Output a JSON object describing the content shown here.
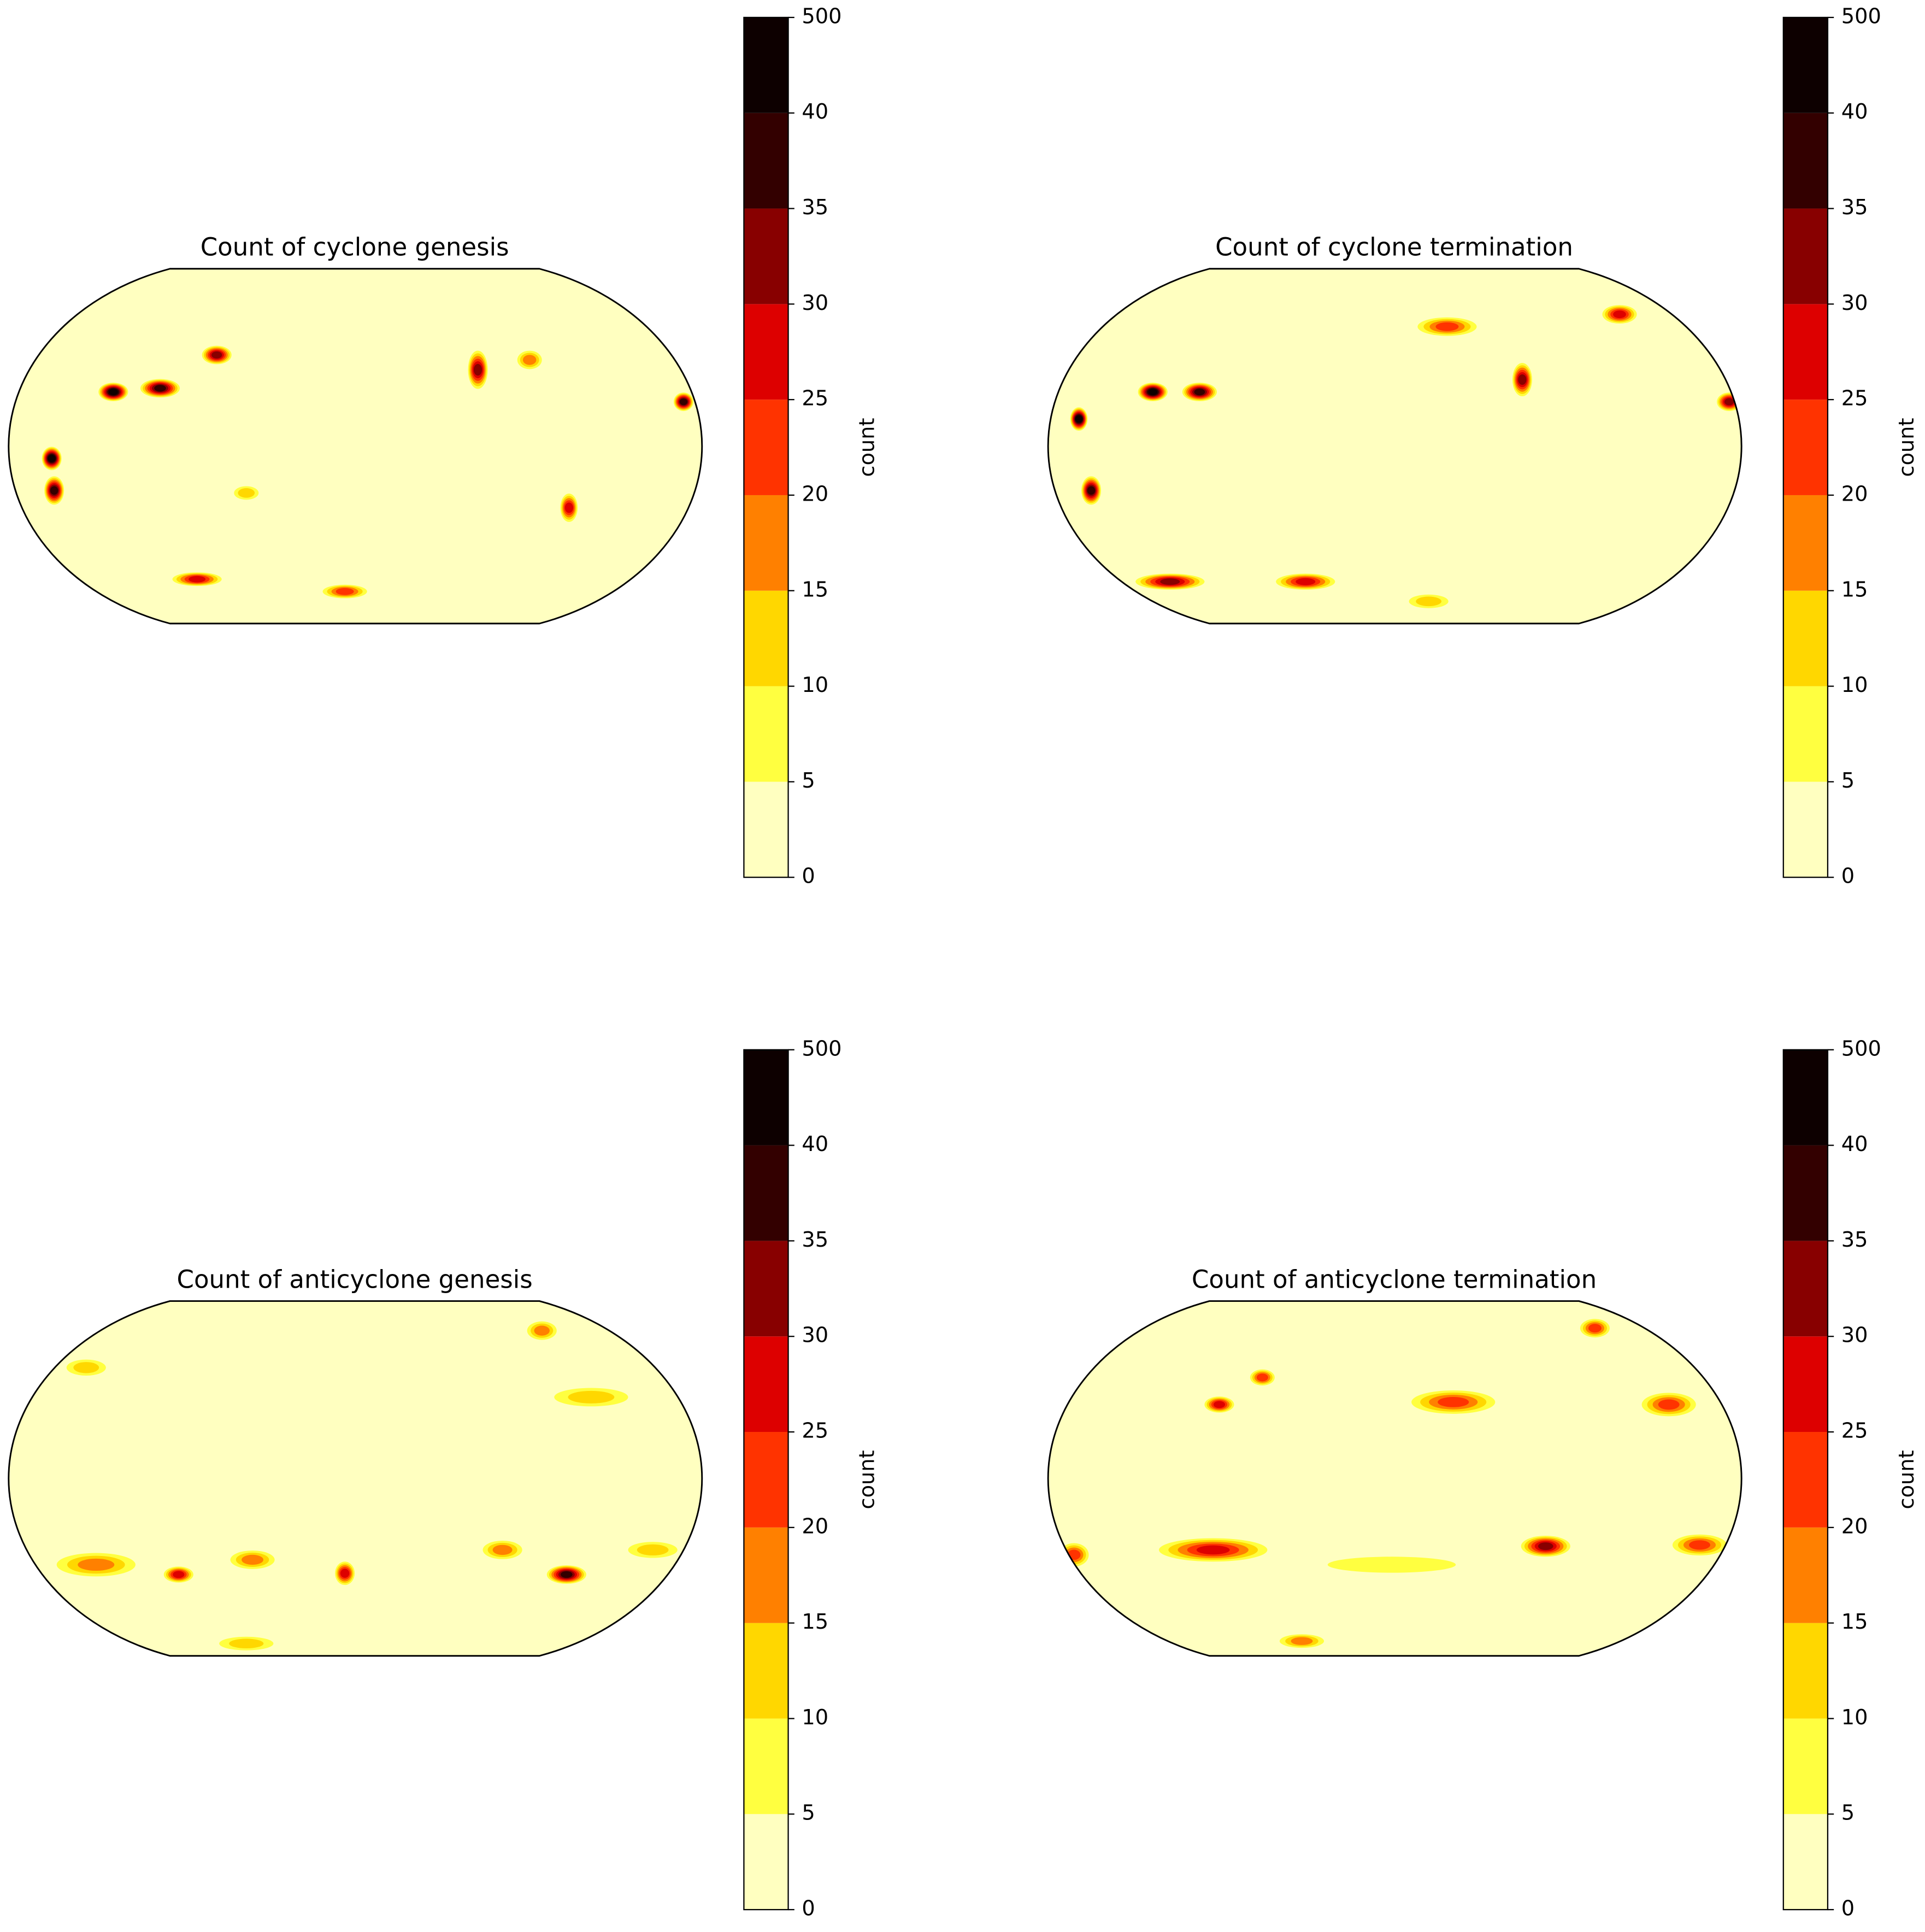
{
  "panels": [
    {
      "title": "Count of cyclone genesis",
      "colorbar": {
        "label": "count",
        "ticks": [
          0,
          5,
          10,
          15,
          20,
          25,
          30,
          35,
          40,
          500
        ],
        "colors": [
          "#ffffc0",
          "#ffff40",
          "#ffd700",
          "#ff8000",
          "#ff3300",
          "#dd0000",
          "#880000",
          "#330000",
          "#0d0000"
        ]
      }
    },
    {
      "title": "Count of cyclone termination",
      "colorbar": {
        "label": "count",
        "ticks": [
          0,
          5,
          10,
          15,
          20,
          25,
          30,
          35,
          40,
          500
        ],
        "colors": [
          "#ffffc0",
          "#ffff40",
          "#ffd700",
          "#ff8000",
          "#ff3300",
          "#dd0000",
          "#880000",
          "#330000",
          "#0d0000"
        ]
      }
    },
    {
      "title": "Count of anticyclone genesis",
      "colorbar": {
        "label": "count",
        "ticks": [
          0,
          5,
          10,
          15,
          20,
          25,
          30,
          35,
          40,
          500
        ],
        "colors": [
          "#ffffc0",
          "#ffff40",
          "#ffd700",
          "#ff8000",
          "#ff3300",
          "#dd0000",
          "#880000",
          "#330000",
          "#0d0000"
        ]
      }
    },
    {
      "title": "Count of anticyclone termination",
      "colorbar": {
        "label": "count",
        "ticks": [
          0,
          5,
          10,
          15,
          20,
          25,
          30,
          35,
          40,
          500
        ],
        "colors": [
          "#ffffc0",
          "#ffff40",
          "#ffd700",
          "#ff8000",
          "#ff3300",
          "#dd0000",
          "#880000",
          "#330000",
          "#0d0000"
        ]
      }
    }
  ]
}
